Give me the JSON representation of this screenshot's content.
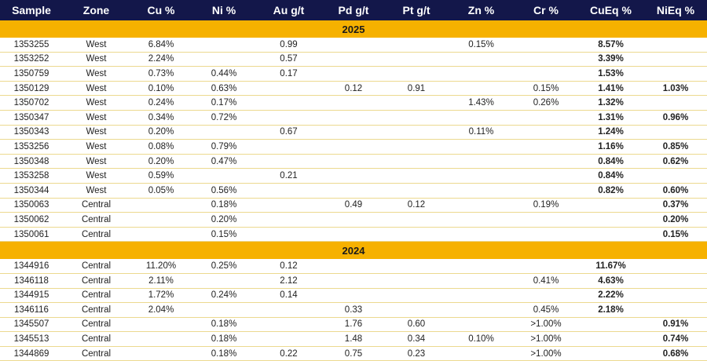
{
  "headers": [
    "Sample",
    "Zone",
    "Cu %",
    "Ni %",
    "Au g/t",
    "Pd g/t",
    "Pt g/t",
    "Zn %",
    "Cr %",
    "CuEq %",
    "NiEq %"
  ],
  "colors": {
    "header_bg": "#13174a",
    "year_band": "#f6b100",
    "row_divider": "#ecd98f"
  },
  "groups": [
    {
      "year": "2025",
      "rows": [
        [
          "1353255",
          "West",
          "6.84%",
          "",
          "0.99",
          "",
          "",
          "0.15%",
          "",
          "8.57%",
          ""
        ],
        [
          "1353252",
          "West",
          "2.24%",
          "",
          "0.57",
          "",
          "",
          "",
          "",
          "3.39%",
          ""
        ],
        [
          "1350759",
          "West",
          "0.73%",
          "0.44%",
          "0.17",
          "",
          "",
          "",
          "",
          "1.53%",
          ""
        ],
        [
          "1350129",
          "West",
          "0.10%",
          "0.63%",
          "",
          "0.12",
          "0.91",
          "",
          "0.15%",
          "1.41%",
          "1.03%"
        ],
        [
          "1350702",
          "West",
          "0.24%",
          "0.17%",
          "",
          "",
          "",
          "1.43%",
          "0.26%",
          "1.32%",
          ""
        ],
        [
          "1350347",
          "West",
          "0.34%",
          "0.72%",
          "",
          "",
          "",
          "",
          "",
          "1.31%",
          "0.96%"
        ],
        [
          "1350343",
          "West",
          "0.20%",
          "",
          "0.67",
          "",
          "",
          "0.11%",
          "",
          "1.24%",
          ""
        ],
        [
          "1353256",
          "West",
          "0.08%",
          "0.79%",
          "",
          "",
          "",
          "",
          "",
          "1.16%",
          "0.85%"
        ],
        [
          "1350348",
          "West",
          "0.20%",
          "0.47%",
          "",
          "",
          "",
          "",
          "",
          "0.84%",
          "0.62%"
        ],
        [
          "1353258",
          "West",
          "0.59%",
          "",
          "0.21",
          "",
          "",
          "",
          "",
          "0.84%",
          ""
        ],
        [
          "1350344",
          "West",
          "0.05%",
          "0.56%",
          "",
          "",
          "",
          "",
          "",
          "0.82%",
          "0.60%"
        ],
        [
          "1350063",
          "Central",
          "",
          "0.18%",
          "",
          "0.49",
          "0.12",
          "",
          "0.19%",
          "",
          "0.37%"
        ],
        [
          "1350062",
          "Central",
          "",
          "0.20%",
          "",
          "",
          "",
          "",
          "",
          "",
          "0.20%"
        ],
        [
          "1350061",
          "Central",
          "",
          "0.15%",
          "",
          "",
          "",
          "",
          "",
          "",
          "0.15%"
        ]
      ]
    },
    {
      "year": "2024",
      "rows": [
        [
          "1344916",
          "Central",
          "11.20%",
          "0.25%",
          "0.12",
          "",
          "",
          "",
          "",
          "11.67%",
          ""
        ],
        [
          "1346118",
          "Central",
          "2.11%",
          "",
          "2.12",
          "",
          "",
          "",
          "0.41%",
          "4.63%",
          ""
        ],
        [
          "1344915",
          "Central",
          "1.72%",
          "0.24%",
          "0.14",
          "",
          "",
          "",
          "",
          "2.22%",
          ""
        ],
        [
          "1346116",
          "Central",
          "2.04%",
          "",
          "",
          "0.33",
          "",
          "",
          "0.45%",
          "2.18%",
          ""
        ],
        [
          "1345507",
          "Central",
          "",
          "0.18%",
          "",
          "1.76",
          "0.60",
          "",
          ">1.00%",
          "",
          "0.91%"
        ],
        [
          "1345513",
          "Central",
          "",
          "0.18%",
          "",
          "1.48",
          "0.34",
          "0.10%",
          ">1.00%",
          "",
          "0.74%"
        ],
        [
          "1344869",
          "Central",
          "",
          "0.18%",
          "0.22",
          "0.75",
          "0.23",
          "",
          ">1.00%",
          "",
          "0.68%"
        ]
      ]
    }
  ]
}
